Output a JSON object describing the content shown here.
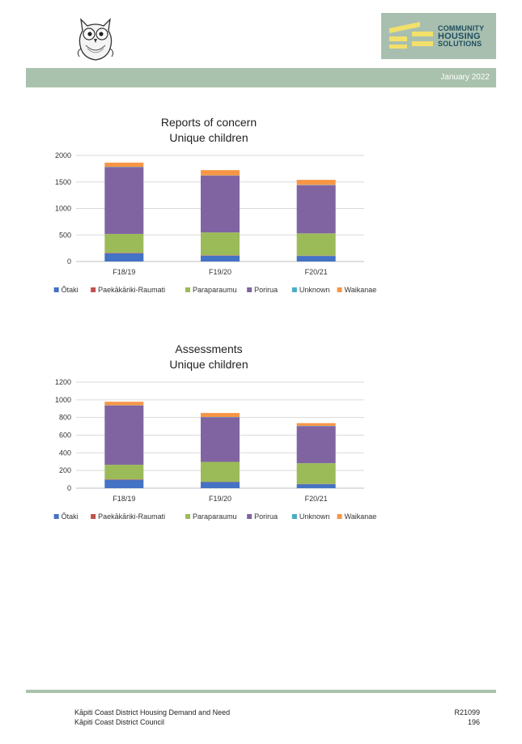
{
  "header": {
    "date": "January 2022",
    "logo_line1": "COMMUNITY",
    "logo_line2": "HOUSING",
    "logo_line3": "SOLUTIONS"
  },
  "colors": {
    "Ōtaki": "#4472c4",
    "Paekākāriki-Raumati": "#c0504d",
    "Paraparaumu": "#9bbb59",
    "Porirua": "#8064a2",
    "Unknown": "#4bacc6",
    "Waikanae": "#f79646"
  },
  "chart_data": [
    {
      "type": "bar",
      "stacked": true,
      "title": "Reports of concern",
      "subtitle": "Unique children",
      "categories": [
        "F18/19",
        "F19/20",
        "F20/21"
      ],
      "ylim": [
        0,
        2000
      ],
      "yticks": [
        0,
        500,
        1000,
        1500,
        2000
      ],
      "grid": true,
      "legend": "bottom",
      "series": [
        {
          "name": "Ōtaki",
          "values": [
            155,
            110,
            105
          ]
        },
        {
          "name": "Paekākāriki-Raumati",
          "values": [
            10,
            8,
            5
          ]
        },
        {
          "name": "Paraparaumu",
          "values": [
            355,
            430,
            420
          ]
        },
        {
          "name": "Porirua",
          "values": [
            1260,
            1070,
            910
          ]
        },
        {
          "name": "Unknown",
          "values": [
            5,
            5,
            5
          ]
        },
        {
          "name": "Waikanae",
          "values": [
            80,
            100,
            95
          ]
        }
      ]
    },
    {
      "type": "bar",
      "stacked": true,
      "title": "Assessments",
      "subtitle": "Unique children",
      "categories": [
        "F18/19",
        "F19/20",
        "F20/21"
      ],
      "ylim": [
        0,
        1200
      ],
      "yticks": [
        0,
        200,
        400,
        600,
        800,
        1000,
        1200
      ],
      "grid": true,
      "legend": "bottom",
      "series": [
        {
          "name": "Ōtaki",
          "values": [
            95,
            70,
            45
          ]
        },
        {
          "name": "Paekākāriki-Raumati",
          "values": [
            5,
            3,
            3
          ]
        },
        {
          "name": "Paraparaumu",
          "values": [
            165,
            225,
            235
          ]
        },
        {
          "name": "Porirua",
          "values": [
            670,
            505,
            420
          ]
        },
        {
          "name": "Unknown",
          "values": [
            3,
            3,
            3
          ]
        },
        {
          "name": "Waikanae",
          "values": [
            40,
            45,
            30
          ]
        }
      ]
    }
  ],
  "footer": {
    "left_line1": "Kāpiti Coast District Housing Demand and Need",
    "left_line2": "Kāpiti Coast District Council",
    "right_line1": "R21099",
    "right_line2": "196"
  }
}
